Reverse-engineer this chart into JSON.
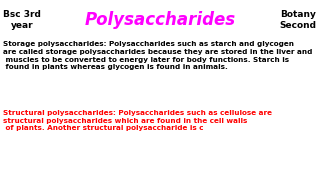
{
  "header_bg": "#ffff00",
  "body_bg": "#ffffff",
  "title": "Polysaccharides",
  "title_color": "#ff00ff",
  "title_fontsize": 12,
  "title_fontstyle": "italic",
  "left_header": "Bsc 3rd\nyear",
  "right_header": "Botany\nSecond",
  "header_text_color": "#000000",
  "header_fontsize": 6.5,
  "storage_text": "Storage polysaccharides: Polysaccharides such as starch and glycogen\nare called storage polysaccharides because they are stored in the liver and\n muscles to be converted to energy later for body functions. Starch is\n found in plants whereas glycogen is found in animals.",
  "storage_color": "#000000",
  "storage_fontsize": 5.2,
  "structural_text": "Structural polysaccharides: Polysaccharides such as cellulose are\nstructural polysaccharides which are found in the cell walls\n of plants. Another structural polysaccharide is c",
  "structural_color": "#ff0000",
  "structural_fontsize": 5.2
}
